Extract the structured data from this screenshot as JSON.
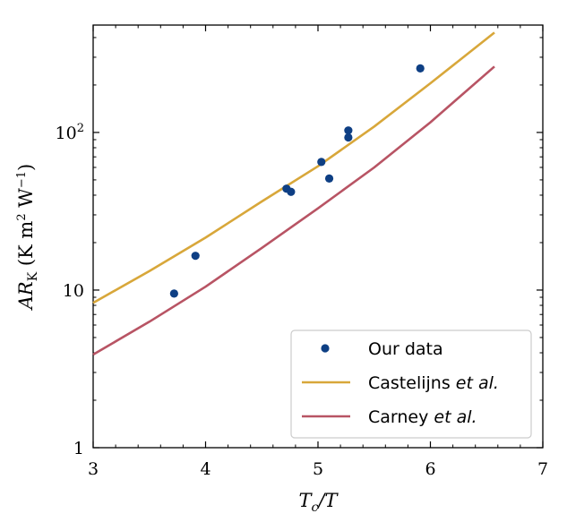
{
  "chart_data": {
    "type": "scatter",
    "xlabel": "Tc/T",
    "ylabel": "ARK (K m2 W−1)",
    "xlim": [
      3,
      7
    ],
    "ylim": [
      1,
      480
    ],
    "yscale": "log",
    "grid": false,
    "legend_position": "bottom-right",
    "x_ticks": [
      3,
      4,
      5,
      6,
      7
    ],
    "x_tick_labels": [
      "3",
      "4",
      "5",
      "6",
      "7"
    ],
    "y_ticks": [
      1,
      10,
      100
    ],
    "y_tick_labels": [
      {
        "base": "1",
        "sup": ""
      },
      {
        "base": "10",
        "sup": ""
      },
      {
        "base": "10",
        "sup": "2"
      }
    ],
    "series": [
      {
        "name": "Our data",
        "kind": "scatter",
        "color": "#0e3f84",
        "x": [
          3.72,
          3.91,
          4.72,
          4.76,
          5.03,
          5.1,
          5.27,
          5.27,
          5.91
        ],
        "y": [
          9.5,
          16.5,
          44,
          42,
          65,
          51,
          93,
          103,
          255
        ]
      },
      {
        "name": "Castelijns",
        "name_suffix": "et al.",
        "kind": "line",
        "color": "#d8a73a",
        "x": [
          3.0,
          3.5,
          4.0,
          4.5,
          5.0,
          5.5,
          6.0,
          6.57
        ],
        "y": [
          8.3,
          13.2,
          21.5,
          36.5,
          61,
          109,
          205,
          430
        ]
      },
      {
        "name": "Carney",
        "name_suffix": "et al.",
        "kind": "line",
        "color": "#b85464",
        "x": [
          3.0,
          3.5,
          4.0,
          4.5,
          5.0,
          5.5,
          6.0,
          6.57
        ],
        "y": [
          3.9,
          6.3,
          10.5,
          18.5,
          33,
          60,
          116,
          262
        ]
      }
    ]
  }
}
